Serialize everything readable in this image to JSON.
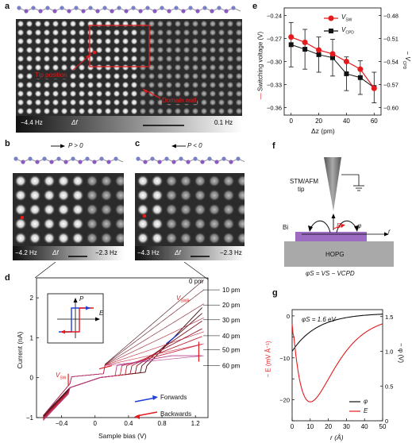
{
  "panels": {
    "a": {
      "letter": "a",
      "left_label": "−4.4 Hz",
      "mid_label": "Δf",
      "right_label": "0.1 Hz",
      "tip_label": "Tip position",
      "wall_label": "Domain wall"
    },
    "b": {
      "letter": "b",
      "arrow_label": "P > 0",
      "left_label": "−4.2 Hz",
      "mid_label": "Δf",
      "right_label": "−2.3 Hz"
    },
    "c": {
      "letter": "c",
      "arrow_label": "P < 0",
      "left_label": "−4.3 Hz",
      "mid_label": "Δf",
      "right_label": "−2.3 Hz"
    },
    "d": {
      "letter": "d",
      "xlabel": "Sample bias (V)",
      "ylabel": "Current (nA)",
      "top_label": "0 pm",
      "vswb_label": "V",
      "vswb_sub": "SWB",
      "vsw_label": "V",
      "vsw_sub": "SW",
      "forwards": "Forwards",
      "backwards": "Backwards",
      "inset_p": "P",
      "inset_e": "E"
    },
    "e": {
      "letter": "e",
      "xlabel": "Δz (pm)",
      "ylabel_left": "Switching voltage (V)",
      "ylabel_right": "V",
      "ylabel_right_sub": "CPD",
      "ylabel_right_prefix": "− ",
      "legend_sw": "V",
      "legend_sw_sub": "SW",
      "legend_cpd": "V",
      "legend_cpd_sub": "CPD"
    },
    "f": {
      "letter": "f",
      "tip_label_1": "STM/AFM",
      "tip_label_2": "tip",
      "bi_label": "Bi",
      "e_label": "E",
      "phi_label": "φ",
      "r_label": "r",
      "hopg_label": "HOPG",
      "eq_label": "φS = VS − VCPD"
    },
    "g": {
      "letter": "g",
      "phis_label": "φS = 1.6 eV",
      "xlabel": "r (Å)",
      "ylabel_left": "− E (mV Å⁻¹)",
      "ylabel_right": "− φ (V)",
      "legend_phi": "φ",
      "legend_e": "E"
    }
  },
  "chart_data": [
    {
      "id": "d",
      "type": "line",
      "xlabel": "Sample bias (V)",
      "ylabel": "Current (nA)",
      "xlim": [
        -0.7,
        1.35
      ],
      "ylim": [
        -1,
        2.5
      ],
      "xticks": [
        -0.4,
        0,
        0.4,
        0.8,
        1.2
      ],
      "xtick_labels": [
        "−0.4",
        "0",
        "0.4",
        "0.8",
        "1.2"
      ],
      "yticks": [
        -1,
        0,
        1,
        2
      ],
      "ytick_labels": [
        "−1",
        "0",
        "1",
        "2"
      ],
      "series_labels": [
        "10 pm",
        "20 pm",
        "30 pm",
        "40 pm",
        "50 pm",
        "60 pm"
      ],
      "series": [
        {
          "name": "0 pm",
          "label_y": 2.45,
          "color": "#3b0a10",
          "end": 2.45,
          "step": 0.62,
          "rise": 1.5
        },
        {
          "name": "10 pm",
          "label_y": 2.2,
          "color": "#5a0f18",
          "end": 2.2,
          "step": 0.56,
          "rise": 1.35
        },
        {
          "name": "20 pm",
          "label_y": 1.82,
          "color": "#7a1522",
          "end": 1.85,
          "step": 0.5,
          "rise": 1.15
        },
        {
          "name": "30 pm",
          "label_y": 1.45,
          "color": "#9a1d2c",
          "end": 1.5,
          "step": 0.44,
          "rise": 0.95
        },
        {
          "name": "40 pm",
          "label_y": 1.05,
          "color": "#b92436",
          "end": 1.15,
          "step": 0.38,
          "rise": 0.75
        },
        {
          "name": "50 pm",
          "label_y": 0.7,
          "color": "#d02c44",
          "end": 0.85,
          "step": 0.32,
          "rise": 0.55
        },
        {
          "name": "60 pm",
          "label_y": 0.3,
          "color": "#b43b8a",
          "end": 0.55,
          "step": 0.26,
          "rise": 0.4
        }
      ]
    },
    {
      "id": "e",
      "type": "line",
      "xlabel": "Δz (pm)",
      "ylabel": "Switching voltage (V)",
      "ylabel_right": "− VCPD (V)",
      "xlim": [
        -5,
        65
      ],
      "ylim": [
        -0.37,
        -0.23
      ],
      "ylim_right": [
        -0.61,
        -0.47
      ],
      "xticks": [
        0,
        20,
        40,
        60
      ],
      "yticks": [
        -0.36,
        -0.33,
        -0.3,
        -0.27,
        -0.24
      ],
      "ytick_labels": [
        "−0.36",
        "−0.33",
        "−0.30",
        "−0.27",
        "−0.24"
      ],
      "yticks_right": [
        -0.6,
        -0.57,
        -0.54,
        -0.51,
        -0.48
      ],
      "ytick_labels_right": [
        "−0.60",
        "−0.57",
        "−0.54",
        "−0.51",
        "−0.48"
      ],
      "x": [
        0,
        10,
        20,
        30,
        40,
        50,
        60
      ],
      "series": [
        {
          "name": "VSW",
          "axis": "left",
          "color": "#e41a1c",
          "values": [
            -0.268,
            -0.275,
            -0.285,
            -0.29,
            -0.3,
            -0.31,
            -0.335
          ]
        },
        {
          "name": "VCPD",
          "axis": "right",
          "color": "#111111",
          "values": [
            -0.518,
            -0.524,
            -0.531,
            -0.535,
            -0.556,
            -0.561,
            -0.574
          ],
          "err": [
            0.029,
            0.026,
            0.023,
            0.024,
            0.022,
            0.022,
            0.02
          ]
        }
      ]
    },
    {
      "id": "g",
      "type": "line",
      "xlabel": "r (Å)",
      "ylabel": "− E (mV Å⁻¹)",
      "ylabel_right": "− φ (V)",
      "xlim": [
        0,
        50
      ],
      "ylim": [
        -25,
        1.5
      ],
      "ylim_right": [
        0,
        1.6
      ],
      "xticks": [
        0,
        10,
        20,
        30,
        40,
        50
      ],
      "yticks": [
        -25,
        -20,
        -15,
        -10,
        -5,
        0
      ],
      "ytick_labels": [
        "",
        "−20",
        "",
        "−10",
        "",
        "0"
      ],
      "yticks_right": [
        0,
        0.5,
        1.0,
        1.5
      ],
      "ytick_labels_right": [
        "0",
        "0.5",
        "1.0",
        "1.5"
      ],
      "series": [
        {
          "name": "φ",
          "axis": "right",
          "color": "#111111"
        },
        {
          "name": "E",
          "axis": "left",
          "color": "#e41a1c"
        }
      ]
    }
  ]
}
